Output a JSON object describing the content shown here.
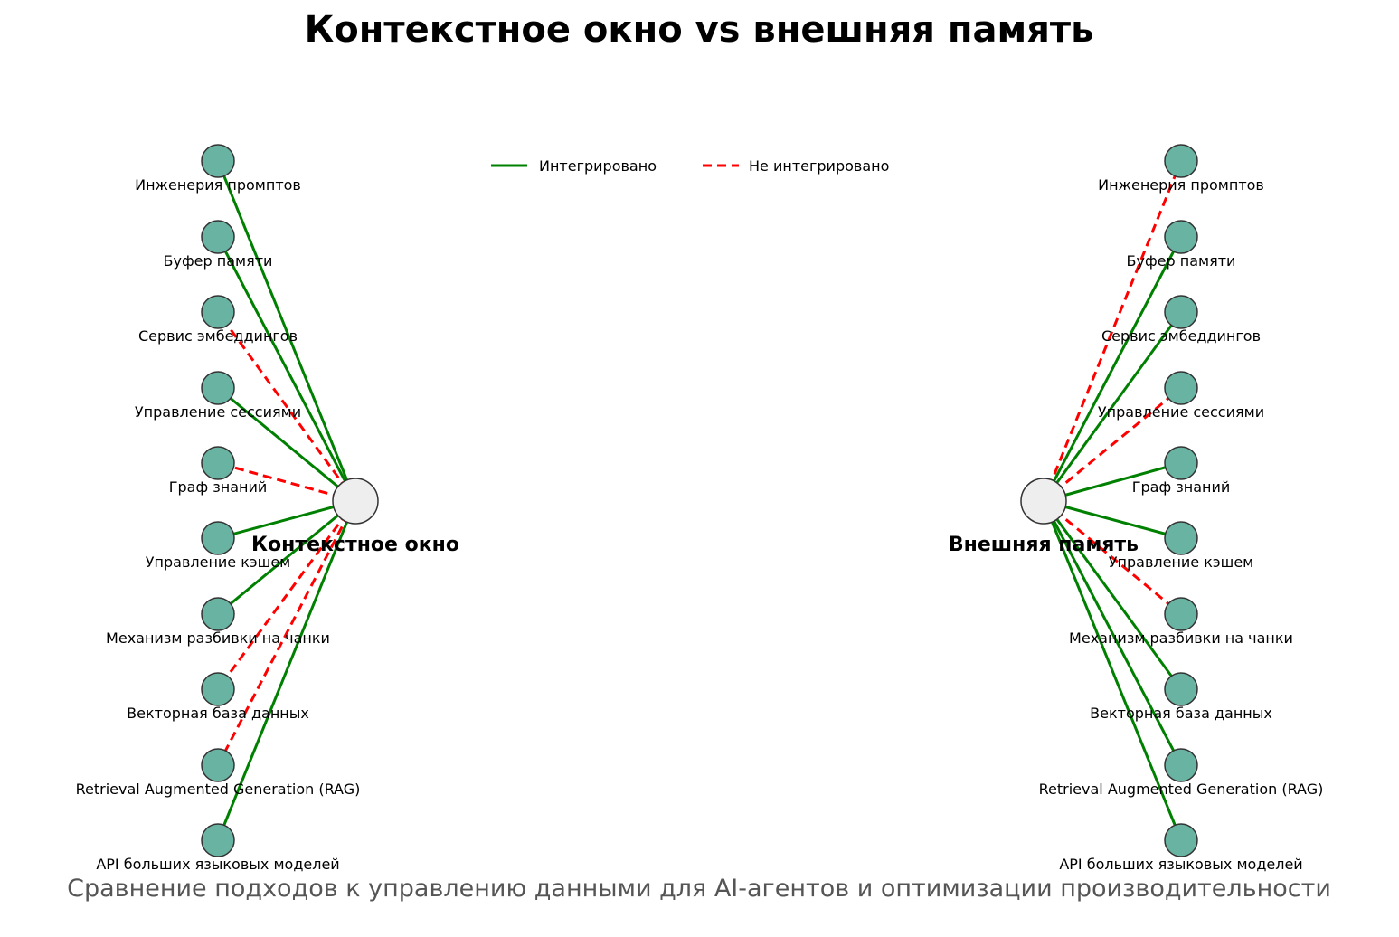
{
  "title": "Контекстное окно vs внешняя память",
  "subtitle": "Сравнение подходов к управлению данными для AI-агентов и оптимизации производительности",
  "legend": {
    "integrated": "Интегрировано",
    "not_integrated": "Не интегрировано"
  },
  "colors": {
    "integrated": "#008000",
    "not_integrated": "#ff0000",
    "node_fill": "#69b3a2",
    "hub_fill": "#eeeeee",
    "node_stroke": "#333333"
  },
  "components": [
    "Инженерия промптов",
    "Буфер памяти",
    "Сервис эмбеддингов",
    "Управление сессиями",
    "Граф знаний",
    "Управление кэшем",
    "Механизм разбивки на чанки",
    "Векторная база данных",
    "Retrieval Augmented Generation (RAG)",
    "API больших языковых моделей"
  ],
  "hubs": [
    {
      "label": "Контекстное окно",
      "integrated": [
        true,
        true,
        false,
        true,
        false,
        true,
        true,
        false,
        false,
        true
      ]
    },
    {
      "label": "Внешняя память",
      "integrated": [
        false,
        true,
        true,
        false,
        true,
        true,
        false,
        true,
        true,
        true
      ]
    }
  ]
}
